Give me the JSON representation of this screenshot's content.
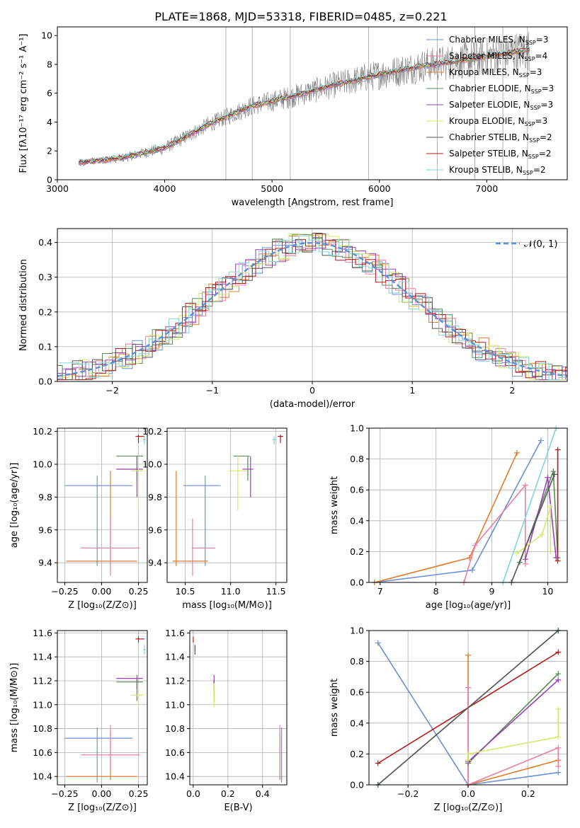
{
  "figure_title": "PLATE=1868, MJD=53318, FIBERID=0485, z=0.221",
  "chart_data": [
    {
      "id": "spectrum",
      "type": "line",
      "xlabel": "wavelength [Angstrom, rest frame]",
      "ylabel": "Flux [fλ10⁻¹⁷ erg cm⁻² s⁻¹ A⁻¹]",
      "xlim": [
        3000,
        7750
      ],
      "ylim": [
        0,
        10.6
      ],
      "xticks": [
        "3000",
        "4000",
        "5000",
        "6000",
        "7000"
      ],
      "yticks": [
        "0",
        "2",
        "4",
        "6",
        "8",
        "10"
      ],
      "grid": false,
      "legend_position": "top-right",
      "data_range": [
        3200,
        7400
      ],
      "continuum": {
        "x": [
          3200,
          3600,
          4000,
          4400,
          4800,
          5200,
          5600,
          6000,
          6400,
          6800,
          7200,
          7400
        ],
        "y": [
          1.2,
          1.5,
          2.2,
          3.8,
          5.1,
          5.8,
          6.6,
          7.3,
          7.9,
          8.3,
          8.8,
          9.0
        ]
      },
      "legend": [
        {
          "name": "Chabrier MILES, N",
          "sub": "SSP",
          "suffix": "=3",
          "color": "#6b8fd6"
        },
        {
          "name": "Salpeter MILES, N",
          "sub": "SSP",
          "suffix": "=4",
          "color": "#e87fa7"
        },
        {
          "name": "Kroupa MILES, N",
          "sub": "SSP",
          "suffix": "=3",
          "color": "#e07b2c"
        },
        {
          "name": "Chabrier ELODIE, N",
          "sub": "SSP",
          "suffix": "=3",
          "color": "#5a8a5a"
        },
        {
          "name": "Salpeter ELODIE, N",
          "sub": "SSP",
          "suffix": "=3",
          "color": "#9b3fb5"
        },
        {
          "name": "Kroupa ELODIE, N",
          "sub": "SSP",
          "suffix": "=3",
          "color": "#d4e86a"
        },
        {
          "name": "Chabrier STELIB, N",
          "sub": "SSP",
          "suffix": "=2",
          "color": "#555555"
        },
        {
          "name": "Salpeter STELIB, N",
          "sub": "SSP",
          "suffix": "=2",
          "color": "#b31b1b"
        },
        {
          "name": "Kroupa STELIB, N",
          "sub": "SSP",
          "suffix": "=2",
          "color": "#7fd6d6"
        }
      ]
    },
    {
      "id": "residuals",
      "type": "line",
      "xlabel": "(data-model)/error",
      "ylabel": "Normed distribution",
      "xlim": [
        -2.55,
        2.55
      ],
      "ylim": [
        0,
        0.44
      ],
      "xticks": [
        -2,
        -1,
        0,
        1,
        2
      ],
      "xtick_labels": [
        "−2",
        "−1",
        "0",
        "1",
        "2"
      ],
      "yticks": [
        0,
        0.1,
        0.2,
        0.3,
        0.4
      ],
      "ytick_labels": [
        "0.0",
        "0.1",
        "0.2",
        "0.3",
        "0.4"
      ],
      "grid": true,
      "legend": {
        "label": "𝒩(0, 1)",
        "color": "#5b8fd8",
        "position": "top-right"
      },
      "normal_mean": 0,
      "normal_sigma": 1
    },
    {
      "id": "age-vs-Z",
      "type": "scatter",
      "xlabel": "Z [log₁₀(Z/Z⊙)]",
      "ylabel": "age  [log₁₀(age/yr)]",
      "xlim": [
        -0.3,
        0.31
      ],
      "ylim": [
        9.28,
        10.22
      ],
      "xticks": [
        -0.25,
        0,
        0.25
      ],
      "xtick_labels": [
        "−0.25",
        "0.00",
        "0.25"
      ],
      "yticks": [
        9.4,
        9.6,
        9.8,
        10.0,
        10.2
      ],
      "ytick_labels": [
        "9.4",
        "9.6",
        "9.8",
        "10.0",
        "10.2"
      ],
      "grid": true,
      "points": [
        {
          "color": "#6b8fd6",
          "x": -0.03,
          "xlo": -0.25,
          "xhi": 0.21,
          "y": 9.87,
          "ylo": 9.38,
          "yhi": 9.93
        },
        {
          "color": "#e07b2c",
          "x": 0.06,
          "xlo": -0.24,
          "xhi": 0.24,
          "y": 9.41,
          "ylo": 9.38,
          "yhi": 9.96
        },
        {
          "color": "#e87fa7",
          "x": 0.06,
          "xlo": -0.14,
          "xhi": 0.26,
          "y": 9.49,
          "ylo": 9.32,
          "yhi": 9.67
        },
        {
          "color": "#5a8a5a",
          "x": 0.24,
          "xlo": 0.1,
          "xhi": 0.28,
          "y": 10.05,
          "ylo": 9.9,
          "yhi": 10.05
        },
        {
          "color": "#9b3fb5",
          "x": 0.24,
          "xlo": 0.1,
          "xhi": 0.28,
          "y": 9.97,
          "ylo": 9.8,
          "yhi": 10.05
        },
        {
          "color": "#d4e86a",
          "x": 0.25,
          "xlo": 0.2,
          "xhi": 0.28,
          "y": 9.96,
          "ylo": 9.72,
          "yhi": 10.05
        },
        {
          "color": "#b31b1b",
          "x": 0.25,
          "xlo": 0.23,
          "xhi": 0.29,
          "y": 10.17,
          "ylo": 10.13,
          "yhi": 10.18
        },
        {
          "color": "#7fd6d6",
          "x": 0.29,
          "xlo": 0.28,
          "xhi": 0.3,
          "y": 10.15,
          "ylo": 10.12,
          "yhi": 10.17
        }
      ]
    },
    {
      "id": "age-vs-mass",
      "type": "scatter",
      "xlabel": "mass [log₁₀(M/M⊙)]",
      "ylabel": "",
      "xlim": [
        10.3,
        11.62
      ],
      "ylim": [
        9.28,
        10.22
      ],
      "xticks": [
        10.5,
        11.0,
        11.5
      ],
      "xtick_labels": [
        "10.5",
        "11.0",
        "11.5"
      ],
      "yticks": [
        9.4,
        9.6,
        9.8,
        10.0,
        10.2
      ],
      "ytick_labels": [
        "9.4",
        "9.6",
        "9.8",
        "10.0",
        "10.2"
      ],
      "grid": true,
      "points": [
        {
          "color": "#6b8fd6",
          "x": 10.72,
          "xlo": 10.48,
          "xhi": 10.89,
          "y": 9.87,
          "ylo": 9.38,
          "yhi": 9.93
        },
        {
          "color": "#e07b2c",
          "x": 10.4,
          "xlo": 10.36,
          "xhi": 10.75,
          "y": 9.41,
          "ylo": 9.38,
          "yhi": 9.96
        },
        {
          "color": "#e87fa7",
          "x": 10.58,
          "xlo": 10.57,
          "xhi": 10.83,
          "y": 9.49,
          "ylo": 9.32,
          "yhi": 9.67
        },
        {
          "color": "#5a8a5a",
          "x": 11.19,
          "xlo": 11.03,
          "xhi": 11.21,
          "y": 10.05,
          "ylo": 9.9,
          "yhi": 10.05
        },
        {
          "color": "#9b3fb5",
          "x": 11.22,
          "xlo": 11.13,
          "xhi": 11.25,
          "y": 9.97,
          "ylo": 9.8,
          "yhi": 10.05
        },
        {
          "color": "#d4e86a",
          "x": 11.08,
          "xlo": 10.98,
          "xhi": 11.18,
          "y": 9.96,
          "ylo": 9.72,
          "yhi": 10.05
        },
        {
          "color": "#b31b1b",
          "x": 11.55,
          "xlo": 11.52,
          "xhi": 11.58,
          "y": 10.17,
          "ylo": 10.13,
          "yhi": 10.18
        },
        {
          "color": "#7fd6d6",
          "x": 11.48,
          "xlo": 11.46,
          "xhi": 11.5,
          "y": 10.15,
          "ylo": 10.12,
          "yhi": 10.17
        }
      ]
    },
    {
      "id": "weight-vs-age",
      "type": "line",
      "xlabel": "age  [log₁₀(age/yr)]",
      "ylabel": "mass weight",
      "xlim": [
        6.8,
        10.35
      ],
      "ylim": [
        0,
        1
      ],
      "xticks": [
        7,
        8,
        9,
        10
      ],
      "xtick_labels": [
        "7",
        "8",
        "9",
        "10"
      ],
      "yticks": [
        0,
        0.2,
        0.4,
        0.6,
        0.8,
        1.0
      ],
      "ytick_labels": [
        "0.0",
        "0.2",
        "0.4",
        "0.6",
        "0.8",
        "1.0"
      ],
      "grid": true,
      "series": [
        {
          "color": "#6b8fd6",
          "x": [
            6.9,
            8.65,
            9.88
          ],
          "y": [
            0.0,
            0.08,
            0.92
          ]
        },
        {
          "color": "#e07b2c",
          "x": [
            6.9,
            8.6,
            9.45
          ],
          "y": [
            0.0,
            0.16,
            0.84
          ]
        },
        {
          "color": "#e87fa7",
          "x": [
            8.5,
            8.7,
            9.6,
            9.6
          ],
          "y": [
            0.0,
            0.24,
            0.63,
            0.12
          ]
        },
        {
          "color": "#5a8a5a",
          "x": [
            9.5,
            10.1,
            10.18
          ],
          "y": [
            0.13,
            0.72,
            0.16
          ]
        },
        {
          "color": "#9b3fb5",
          "x": [
            9.6,
            10.0,
            10.15
          ],
          "y": [
            0.15,
            0.68,
            0.16
          ]
        },
        {
          "color": "#d4e86a",
          "x": [
            9.45,
            9.9,
            10.05,
            10.05
          ],
          "y": [
            0.19,
            0.31,
            0.49,
            0.2
          ]
        },
        {
          "color": "#555555",
          "x": [
            9.35,
            10.12
          ],
          "y": [
            0.0,
            0.7
          ]
        },
        {
          "color": "#b31b1b",
          "x": [
            10.18,
            10.18
          ],
          "y": [
            0.14,
            0.86
          ]
        },
        {
          "color": "#7fd6d6",
          "x": [
            9.2,
            10.15
          ],
          "y": [
            0.0,
            1.0
          ]
        }
      ]
    },
    {
      "id": "mass-vs-Z",
      "type": "scatter",
      "xlabel": "Z [log₁₀(Z/Z⊙)]",
      "ylabel": "mass [log₁₀(M/M⊙)]",
      "xlim": [
        -0.3,
        0.31
      ],
      "ylim": [
        10.33,
        11.62
      ],
      "xticks": [
        -0.25,
        0,
        0.25
      ],
      "xtick_labels": [
        "−0.25",
        "0.00",
        "0.25"
      ],
      "yticks": [
        10.4,
        10.6,
        10.8,
        11.0,
        11.2,
        11.4,
        11.6
      ],
      "ytick_labels": [
        "10.4",
        "10.6",
        "10.8",
        "11.0",
        "11.2",
        "11.4",
        "11.6"
      ],
      "grid": true,
      "points": [
        {
          "color": "#6b8fd6",
          "x": -0.03,
          "xlo": -0.25,
          "xhi": 0.21,
          "y": 10.72,
          "ylo": 10.35,
          "yhi": 10.81
        },
        {
          "color": "#e07b2c",
          "x": 0.06,
          "xlo": -0.24,
          "xhi": 0.24,
          "y": 10.4,
          "ylo": 10.37,
          "yhi": 10.77
        },
        {
          "color": "#e87fa7",
          "x": 0.06,
          "xlo": -0.14,
          "xhi": 0.26,
          "y": 10.58,
          "ylo": 10.45,
          "yhi": 10.83
        },
        {
          "color": "#5a8a5a",
          "x": 0.24,
          "xlo": 0.1,
          "xhi": 0.28,
          "y": 11.19,
          "ylo": 11.03,
          "yhi": 11.21
        },
        {
          "color": "#9b3fb5",
          "x": 0.24,
          "xlo": 0.1,
          "xhi": 0.28,
          "y": 11.22,
          "ylo": 11.13,
          "yhi": 11.25
        },
        {
          "color": "#d4e86a",
          "x": 0.25,
          "xlo": 0.2,
          "xhi": 0.28,
          "y": 11.08,
          "ylo": 10.98,
          "yhi": 11.18
        },
        {
          "color": "#b31b1b",
          "x": 0.25,
          "xlo": 0.23,
          "xhi": 0.29,
          "y": 11.55,
          "ylo": 11.52,
          "yhi": 11.57
        },
        {
          "color": "#7fd6d6",
          "x": 0.29,
          "xlo": 0.28,
          "xhi": 0.3,
          "y": 11.46,
          "ylo": 11.42,
          "yhi": 11.5
        }
      ]
    },
    {
      "id": "mass-vs-ebv",
      "type": "scatter",
      "xlabel": "E(B-V)",
      "ylabel": "",
      "xlim": [
        -0.02,
        0.54
      ],
      "ylim": [
        10.33,
        11.62
      ],
      "xticks": [
        0,
        0.2,
        0.4
      ],
      "xtick_labels": [
        "0.0",
        "0.2",
        "0.4"
      ],
      "yticks": [
        10.4,
        10.6,
        10.8,
        11.0,
        11.2,
        11.4,
        11.6
      ],
      "ytick_labels": [
        "10.4",
        "10.6",
        "10.8",
        "11.0",
        "11.2",
        "11.4",
        "11.6"
      ],
      "grid": true,
      "points": [
        {
          "color": "#6b8fd6",
          "x": 0.51,
          "y": 10.72,
          "ylo": 10.35,
          "yhi": 10.81
        },
        {
          "color": "#e07b2c",
          "x": 0.5,
          "y": 10.4,
          "ylo": 10.37,
          "yhi": 10.77
        },
        {
          "color": "#e87fa7",
          "x": 0.5,
          "y": 10.58,
          "ylo": 10.45,
          "yhi": 10.83
        },
        {
          "color": "#5a8a5a",
          "x": 0.12,
          "y": 11.19,
          "ylo": 11.03,
          "yhi": 11.21
        },
        {
          "color": "#9b3fb5",
          "x": 0.12,
          "y": 11.22,
          "ylo": 11.13,
          "yhi": 11.25
        },
        {
          "color": "#d4e86a",
          "x": 0.12,
          "y": 11.08,
          "ylo": 10.98,
          "yhi": 11.18
        },
        {
          "color": "#b31b1b",
          "x": 0.0,
          "y": 11.55,
          "ylo": 11.52,
          "yhi": 11.57
        },
        {
          "color": "#7fd6d6",
          "x": 0.01,
          "y": 11.46,
          "ylo": 11.42,
          "yhi": 11.5
        },
        {
          "color": "#555555",
          "x": 0.01,
          "y": 11.46,
          "ylo": 11.42,
          "yhi": 11.5
        }
      ]
    },
    {
      "id": "weight-vs-Z",
      "type": "line",
      "xlabel": "Z [log₁₀(Z/Z⊙)]",
      "ylabel": "mass weight",
      "xlim": [
        -0.33,
        0.33
      ],
      "ylim": [
        0,
        1
      ],
      "xticks": [
        -0.2,
        0,
        0.2
      ],
      "xtick_labels": [
        "−0.2",
        "0.0",
        "0.2"
      ],
      "yticks": [
        0,
        0.2,
        0.4,
        0.6,
        0.8,
        1.0
      ],
      "ytick_labels": [
        "0.0",
        "0.2",
        "0.4",
        "0.6",
        "0.8",
        "1.0"
      ],
      "grid": true,
      "series": [
        {
          "color": "#6b8fd6",
          "x": [
            -0.3,
            0.0,
            0.3
          ],
          "y": [
            0.92,
            0.0,
            0.08
          ]
        },
        {
          "color": "#e07b2c",
          "x": [
            0.0,
            0.0,
            0.3
          ],
          "y": [
            0.84,
            0.0,
            0.16
          ]
        },
        {
          "color": "#e87fa7",
          "x": [
            0.0,
            0.0,
            0.3,
            0.3
          ],
          "y": [
            0.63,
            0.0,
            0.24,
            0.12
          ]
        },
        {
          "color": "#5a8a5a",
          "x": [
            0.0,
            0.3
          ],
          "y": [
            0.14,
            0.72
          ]
        },
        {
          "color": "#9b3fb5",
          "x": [
            0.0,
            0.0,
            0.3
          ],
          "y": [
            0.16,
            0.15,
            0.68
          ]
        },
        {
          "color": "#d4e86a",
          "x": [
            0.0,
            0.0,
            0.3,
            0.3
          ],
          "y": [
            0.16,
            0.2,
            0.31,
            0.49
          ]
        },
        {
          "color": "#b31b1b",
          "x": [
            -0.3,
            0.3
          ],
          "y": [
            0.14,
            0.86
          ]
        },
        {
          "color": "#7fd6d6",
          "x": [
            -0.3,
            0.3
          ],
          "y": [
            0.0,
            1.0
          ]
        },
        {
          "color": "#555555",
          "x": [
            -0.3,
            0.3
          ],
          "y": [
            0.0,
            1.0
          ]
        }
      ]
    }
  ]
}
